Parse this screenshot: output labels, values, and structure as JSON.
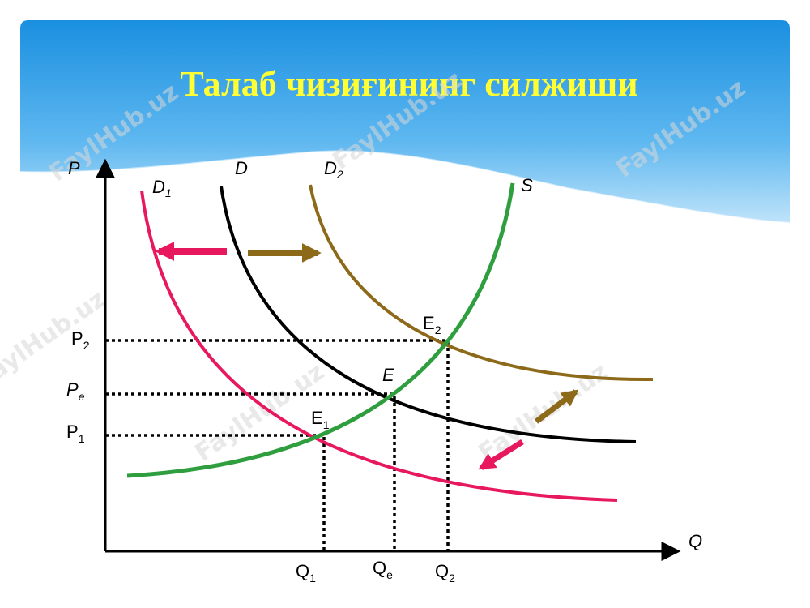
{
  "header": {
    "title": "Талаб чизиғининг силжиши"
  },
  "watermark": "FaylHub.uz",
  "axes": {
    "x": "Q",
    "y": "P"
  },
  "curves": [
    {
      "main": "D",
      "sub": "1"
    },
    {
      "main": "D"
    },
    {
      "main": "D",
      "sub": "2"
    },
    {
      "main": "S"
    }
  ],
  "prices": [
    {
      "main": "P",
      "sub": "2"
    },
    {
      "main": "P",
      "sub": "e"
    },
    {
      "main": "P",
      "sub": "1"
    }
  ],
  "points": [
    {
      "main": "E",
      "sub": "2"
    },
    {
      "main": "E"
    },
    {
      "main": "E",
      "sub": "1"
    }
  ],
  "quantities": [
    {
      "main": "Q",
      "sub": "1"
    },
    {
      "main": "Q",
      "sub": "e"
    },
    {
      "main": "Q",
      "sub": "2"
    }
  ]
}
